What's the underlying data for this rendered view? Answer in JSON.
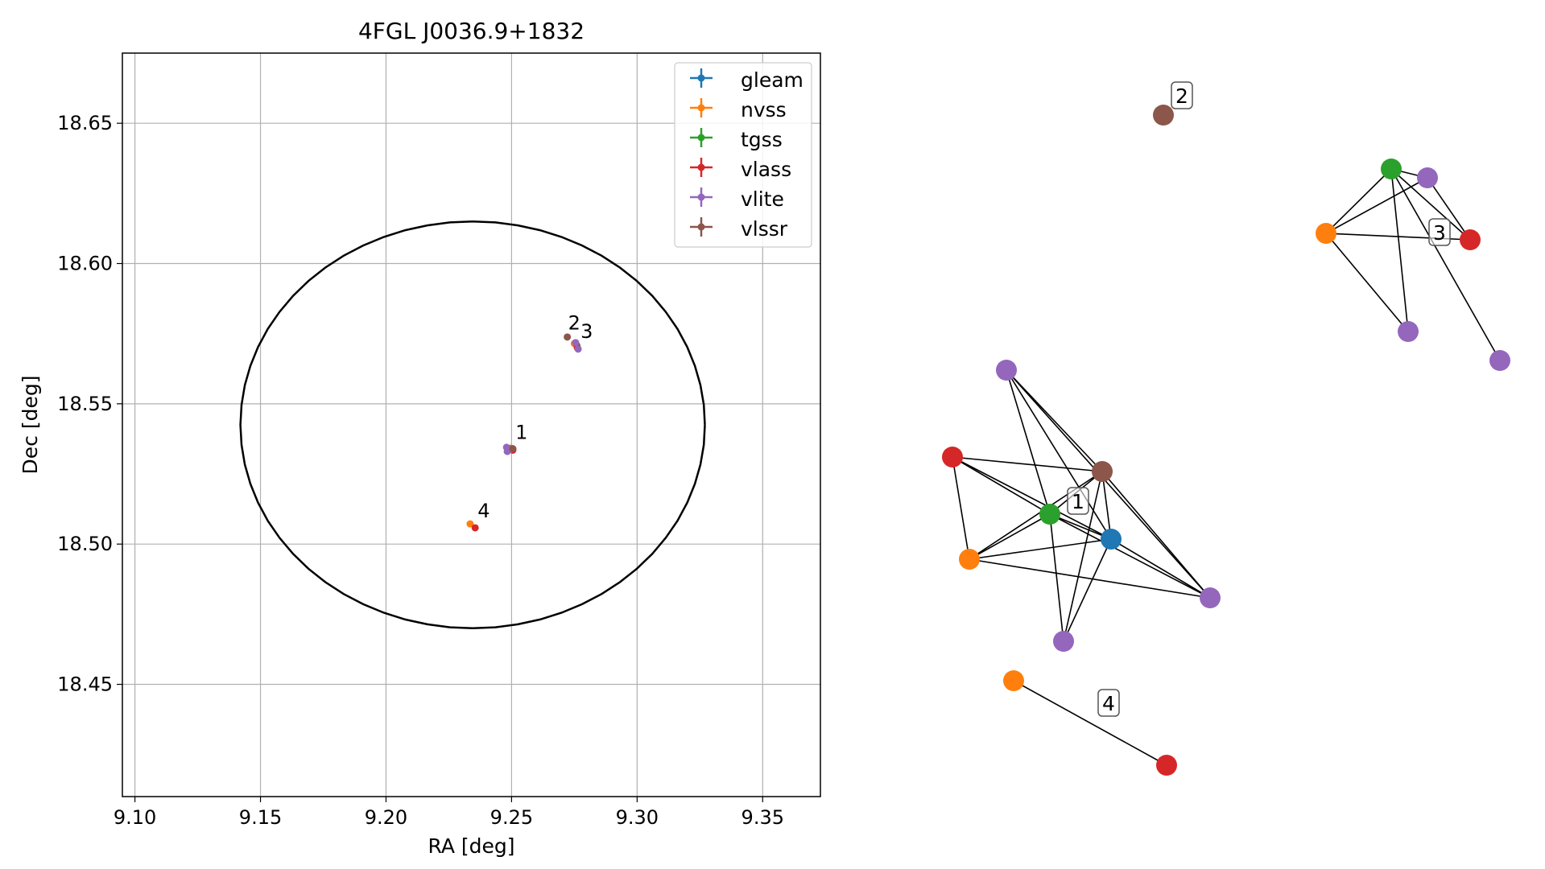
{
  "colors": {
    "gleam": "#1f77b4",
    "nvss": "#ff7f0e",
    "tgss": "#2ca02c",
    "vlass": "#d62728",
    "vlite": "#9467bd",
    "vlssr": "#8c564b"
  },
  "chart_data": [
    {
      "type": "scatter",
      "title": "4FGL J0036.9+1832",
      "xlabel": "RA [deg]",
      "ylabel": "Dec [deg]",
      "xlim": [
        9.095,
        9.373
      ],
      "ylim": [
        18.41,
        18.675
      ],
      "xticks": [
        9.1,
        9.15,
        9.2,
        9.25,
        9.3,
        9.35
      ],
      "xtick_labels": [
        "9.10",
        "9.15",
        "9.20",
        "9.25",
        "9.30",
        "9.35"
      ],
      "yticks": [
        18.45,
        18.5,
        18.55,
        18.6,
        18.65
      ],
      "ytick_labels": [
        "18.45",
        "18.50",
        "18.55",
        "18.60",
        "18.65"
      ],
      "grid": true,
      "legend_position": "top-right",
      "series": [
        {
          "name": "gleam",
          "points": [
            [
              9.2505,
              18.5337
            ]
          ]
        },
        {
          "name": "nvss",
          "points": [
            [
              9.2335,
              18.5072
            ],
            [
              9.2497,
              18.5342
            ],
            [
              9.275,
              18.5715
            ]
          ]
        },
        {
          "name": "tgss",
          "points": [
            [
              9.249,
              18.534
            ],
            [
              9.276,
              18.5708
            ]
          ]
        },
        {
          "name": "vlass",
          "points": [
            [
              9.2355,
              18.5058
            ],
            [
              9.2505,
              18.5335
            ],
            [
              9.2762,
              18.57
            ]
          ]
        },
        {
          "name": "vlite",
          "points": [
            [
              9.248,
              18.5345
            ],
            [
              9.2483,
              18.533
            ],
            [
              9.2492,
              18.5336
            ],
            [
              9.2755,
              18.5718
            ],
            [
              9.2765,
              18.5695
            ]
          ]
        },
        {
          "name": "vlssr",
          "points": [
            [
              9.2505,
              18.534
            ],
            [
              9.2722,
              18.5738
            ]
          ]
        }
      ],
      "ellipse": {
        "center": [
          9.2345,
          18.5425
        ],
        "semi_axis_ra": 0.0925,
        "semi_axis_dec": 0.0725
      },
      "annotations": [
        {
          "text": "1",
          "x": 9.2515,
          "y": 18.5375
        },
        {
          "text": "2",
          "x": 9.2725,
          "y": 18.5765
        },
        {
          "text": "3",
          "x": 9.2775,
          "y": 18.5735
        },
        {
          "text": "4",
          "x": 9.2365,
          "y": 18.5095
        }
      ]
    },
    {
      "type": "graph",
      "nodes": [
        {
          "id": "a1",
          "survey": "vlite"
        },
        {
          "id": "a2",
          "survey": "vlass"
        },
        {
          "id": "a3",
          "survey": "vlssr"
        },
        {
          "id": "a4",
          "survey": "tgss"
        },
        {
          "id": "a5",
          "survey": "gleam"
        },
        {
          "id": "a6",
          "survey": "nvss"
        },
        {
          "id": "a7",
          "survey": "vlite"
        },
        {
          "id": "a8",
          "survey": "vlite"
        },
        {
          "id": "b1",
          "survey": "vlssr"
        },
        {
          "id": "c1",
          "survey": "tgss"
        },
        {
          "id": "c2",
          "survey": "vlite"
        },
        {
          "id": "c3",
          "survey": "nvss"
        },
        {
          "id": "c4",
          "survey": "vlass"
        },
        {
          "id": "c5",
          "survey": "vlite"
        },
        {
          "id": "c6",
          "survey": "vlite"
        },
        {
          "id": "d1",
          "survey": "nvss"
        },
        {
          "id": "d2",
          "survey": "vlass"
        }
      ],
      "edges": [
        [
          "a1",
          "a4"
        ],
        [
          "a1",
          "a3"
        ],
        [
          "a1",
          "a5"
        ],
        [
          "a1",
          "a8"
        ],
        [
          "a2",
          "a3"
        ],
        [
          "a2",
          "a4"
        ],
        [
          "a2",
          "a5"
        ],
        [
          "a2",
          "a6"
        ],
        [
          "a3",
          "a4"
        ],
        [
          "a3",
          "a5"
        ],
        [
          "a3",
          "a6"
        ],
        [
          "a3",
          "a7"
        ],
        [
          "a3",
          "a8"
        ],
        [
          "a4",
          "a5"
        ],
        [
          "a4",
          "a6"
        ],
        [
          "a4",
          "a8"
        ],
        [
          "a4",
          "a7"
        ],
        [
          "a5",
          "a6"
        ],
        [
          "a5",
          "a7"
        ],
        [
          "a5",
          "a8"
        ],
        [
          "a6",
          "a8"
        ],
        [
          "c1",
          "c3"
        ],
        [
          "c1",
          "c2"
        ],
        [
          "c1",
          "c4"
        ],
        [
          "c1",
          "c5"
        ],
        [
          "c1",
          "c6"
        ],
        [
          "c3",
          "c2"
        ],
        [
          "c3",
          "c4"
        ],
        [
          "c3",
          "c5"
        ],
        [
          "c2",
          "c4"
        ],
        [
          "d1",
          "d2"
        ]
      ],
      "labels": [
        {
          "text": "1"
        },
        {
          "text": "2"
        },
        {
          "text": "3"
        },
        {
          "text": "4"
        }
      ]
    }
  ]
}
